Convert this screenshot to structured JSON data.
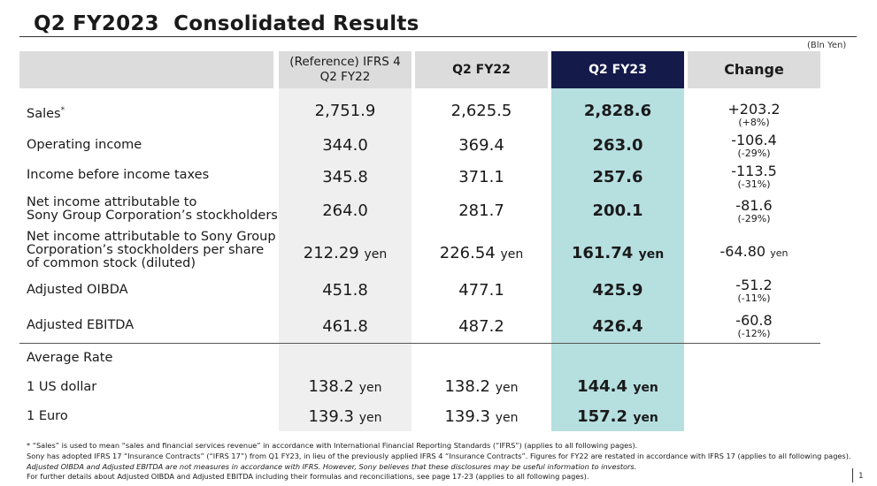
{
  "title": "Q2 FY2023  Consolidated Results",
  "unit": "(Bln Yen)",
  "headers": {
    "ref_line1": "(Reference) IFRS 4",
    "ref_line2": "Q2 FY22",
    "fy22": "Q2 FY22",
    "fy23": "Q2 FY23",
    "change": "Change"
  },
  "rows": [
    {
      "label": "Sales",
      "label_sup": "*",
      "ref": "2,751.9",
      "fy22": "2,625.5",
      "fy23": "2,828.6",
      "change": "+203.2",
      "pct": "(+8%)"
    },
    {
      "label": "Operating income",
      "ref": "344.0",
      "fy22": "369.4",
      "fy23": "263.0",
      "change": "-106.4",
      "pct": "(-29%)"
    },
    {
      "label": "Income before income taxes",
      "ref": "345.8",
      "fy22": "371.1",
      "fy23": "257.6",
      "change": "-113.5",
      "pct": "(-31%)"
    },
    {
      "label1": "Net income attributable to",
      "label2": "Sony Group Corporation’s stockholders",
      "ref": "264.0",
      "fy22": "281.7",
      "fy23": "200.1",
      "change": "-81.6",
      "pct": "(-29%)"
    },
    {
      "label1": "Net income attributable to Sony Group",
      "label2": "Corporation’s stockholders per share",
      "label3": "of common stock (diluted)",
      "ref": "212.29",
      "fy22": "226.54",
      "fy23": "161.74",
      "change": "-64.80",
      "yen": "yen"
    },
    {
      "label": "Adjusted OIBDA",
      "ref": "451.8",
      "fy22": "477.1",
      "fy23": "425.9",
      "change": "-51.2",
      "pct": "(-11%)"
    },
    {
      "label": "Adjusted EBITDA",
      "ref": "461.8",
      "fy22": "487.2",
      "fy23": "426.4",
      "change": "-60.8",
      "pct": "(-12%)"
    }
  ],
  "rates": {
    "heading": "Average Rate",
    "items": [
      {
        "label": "1 US dollar",
        "ref": "138.2",
        "fy22": "138.2",
        "fy23": "144.4",
        "yen": "yen"
      },
      {
        "label": "1 Euro",
        "ref": "139.3",
        "fy22": "139.3",
        "fy23": "157.2",
        "yen": "yen"
      }
    ]
  },
  "footnotes": [
    "* “Sales” is used to mean “sales and financial services revenue” in accordance with International Financial Reporting Standards (“IFRS”) (applies to all following pages).",
    "Sony has adopted IFRS 17 “Insurance Contracts” (“IFRS 17”) from Q1 FY23, in lieu of the previously applied IFRS 4 “Insurance Contracts”. Figures for FY22 are restated in accordance with IFRS 17 (applies to all following pages).",
    "Adjusted OIBDA and Adjusted EBITDA are not measures in accordance with IFRS. However, Sony believes that these disclosures may be useful information to investors.",
    "For further details about Adjusted OIBDA and Adjusted EBITDA including their formulas and reconciliations, see page 17-23 (applies to all following pages)."
  ],
  "page_number": "1",
  "colors": {
    "header_dark": "#141a4a",
    "highlight": "#b6dfe0",
    "header_gray": "#dcdcdc",
    "ref_col": "#efefef"
  }
}
